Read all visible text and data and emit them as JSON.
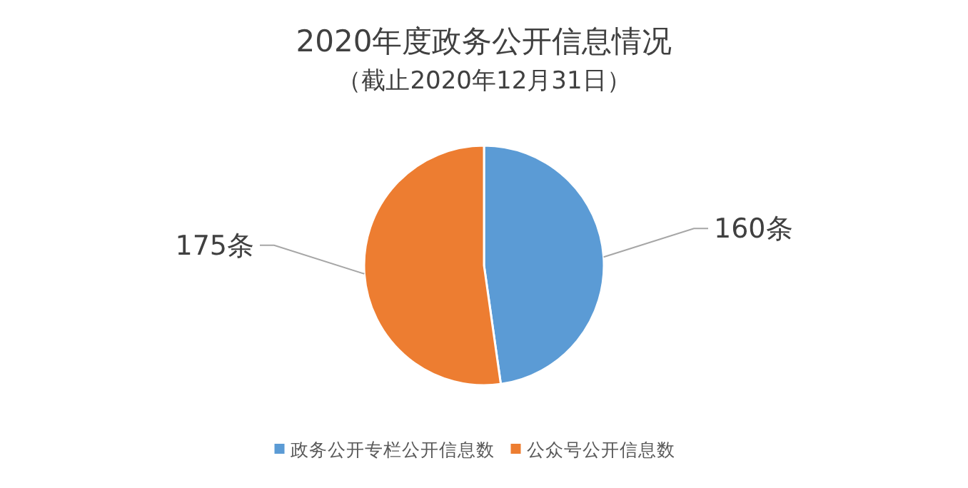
{
  "chart_data": {
    "type": "pie",
    "title": "2020年度政务公开信息情况",
    "subtitle": "（截止2020年12月31日）",
    "categories": [
      "政务公开专栏公开信息数",
      "公众号公开信息数"
    ],
    "values": [
      160,
      175
    ],
    "colors": [
      "#5b9bd5",
      "#ed7d31"
    ],
    "value_labels": [
      "160条",
      "175条"
    ],
    "legend": "bottom"
  }
}
